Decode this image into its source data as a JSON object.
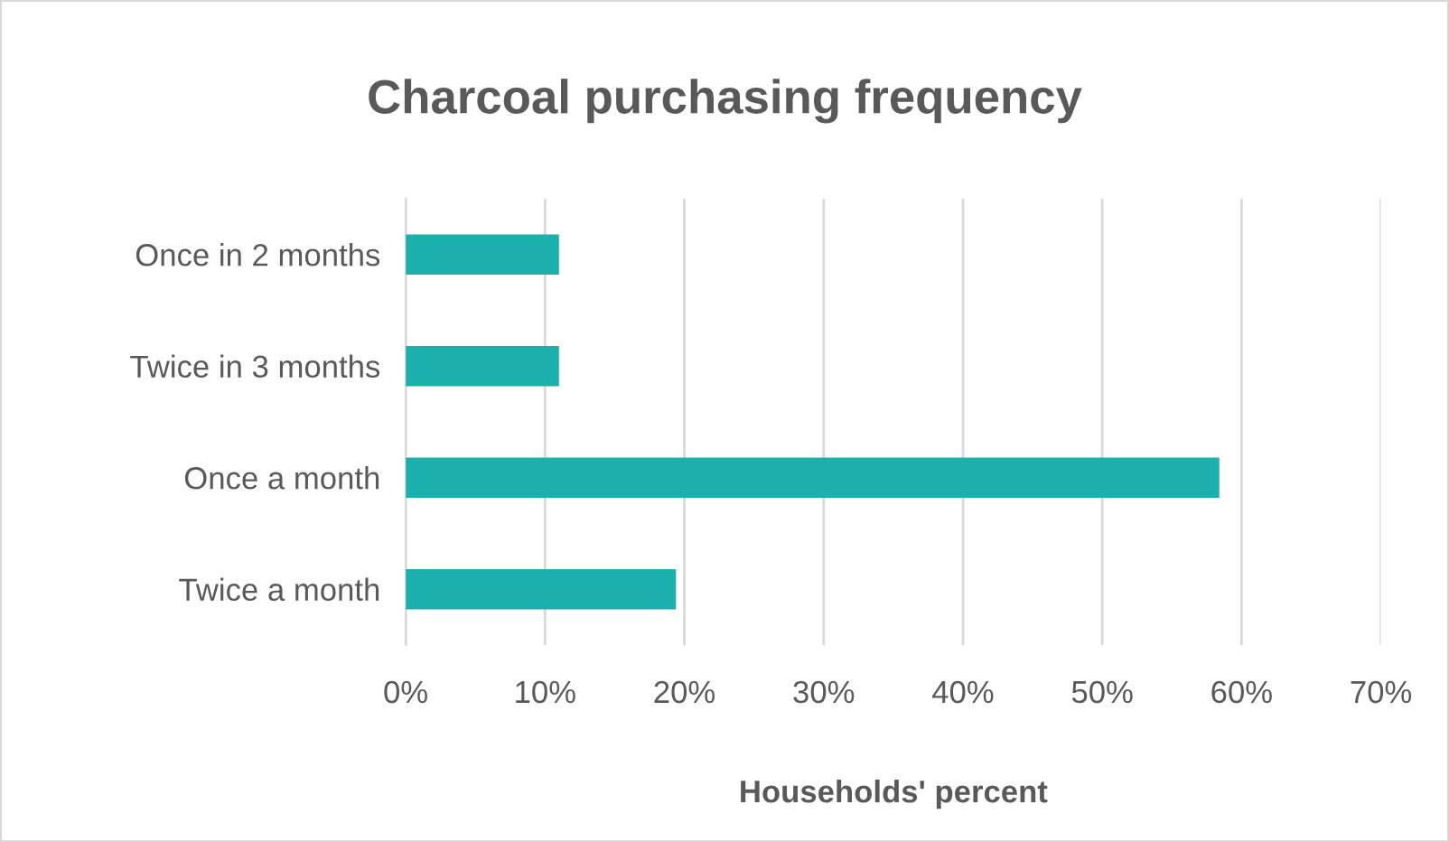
{
  "chart_data": {
    "type": "bar",
    "orientation": "horizontal",
    "title": "Charcoal purchasing frequency",
    "xlabel": "Households' percent",
    "categories": [
      "Once in 2 months",
      "Twice in 3 months",
      "Once a month",
      "Twice a month"
    ],
    "values": [
      11,
      11,
      58.4,
      19.4
    ],
    "color": "#1bb0ab",
    "xlim": [
      0,
      70
    ],
    "xticks": [
      {
        "value": 0,
        "label": "0%"
      },
      {
        "value": 10,
        "label": "10%"
      },
      {
        "value": 20,
        "label": "20%"
      },
      {
        "value": 30,
        "label": "30%"
      },
      {
        "value": 40,
        "label": "40%"
      },
      {
        "value": 50,
        "label": "50%"
      },
      {
        "value": 60,
        "label": "60%"
      },
      {
        "value": 70,
        "label": "70%"
      }
    ],
    "grid": "x",
    "legend": false
  }
}
